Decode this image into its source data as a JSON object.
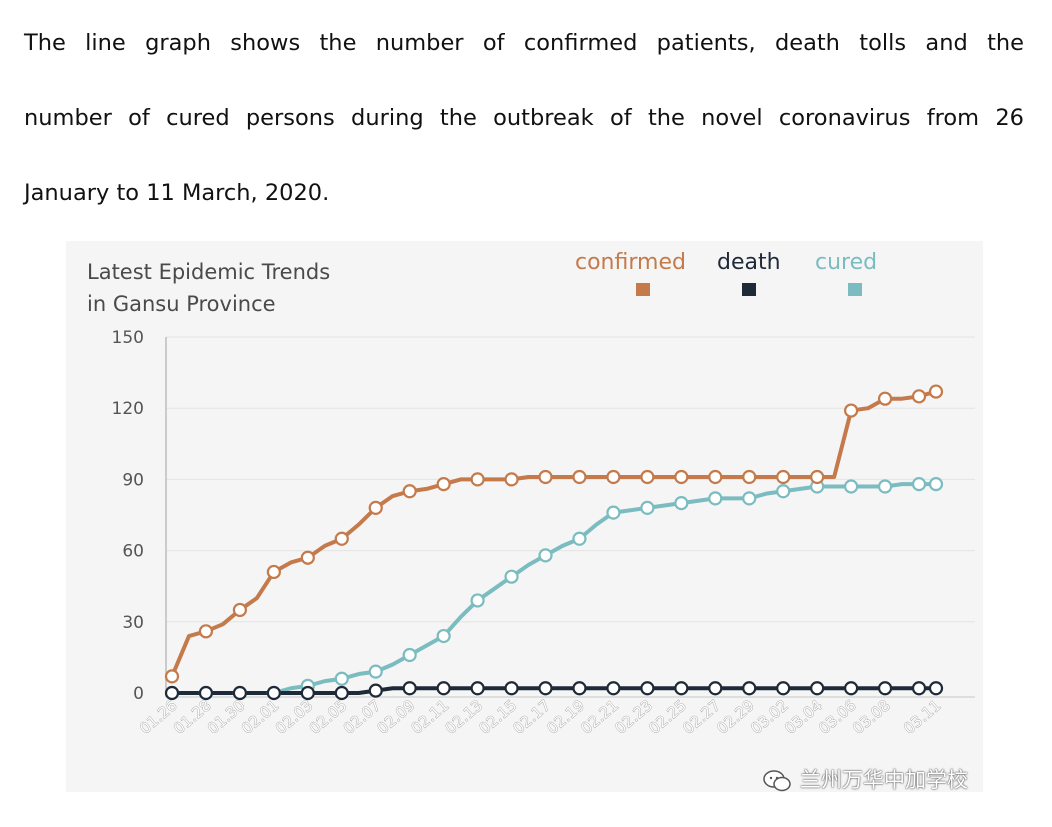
{
  "intro": {
    "line1": "The line graph shows the number of confirmed patients, death tolls and the",
    "line2": "number of cured persons during the outbreak of the novel coronavirus from 26",
    "line3": "January to 11 March, 2020."
  },
  "watermark": "兰州万华中加学校",
  "chart_data": {
    "type": "line",
    "title_line1": "Latest Epidemic Trends",
    "title_line2": "in Gansu Province",
    "xlabel": "",
    "ylabel": "",
    "ylim": [
      0,
      150
    ],
    "yticks": [
      "0",
      "30",
      "60",
      "90",
      "120",
      "150"
    ],
    "grid": true,
    "legend_position": "top-right",
    "x": [
      "01.26",
      "01.27",
      "01.28",
      "01.29",
      "01.30",
      "01.31",
      "02.01",
      "02.02",
      "02.03",
      "02.04",
      "02.05",
      "02.06",
      "02.07",
      "02.08",
      "02.09",
      "02.10",
      "02.11",
      "02.12",
      "02.13",
      "02.14",
      "02.15",
      "02.16",
      "02.17",
      "02.18",
      "02.19",
      "02.20",
      "02.21",
      "02.22",
      "02.23",
      "02.24",
      "02.25",
      "02.26",
      "02.27",
      "02.28",
      "02.29",
      "03.01",
      "03.02",
      "03.03",
      "03.04",
      "03.05",
      "03.06",
      "03.07",
      "03.08",
      "03.09",
      "03.10",
      "03.11"
    ],
    "xticks": [
      "01.26",
      "01.28",
      "01.30",
      "02.01",
      "02.03",
      "02.05",
      "02.07",
      "02.09",
      "02.11",
      "02.13",
      "02.15",
      "02.17",
      "02.19",
      "02.21",
      "02.23",
      "02.25",
      "02.27",
      "02.29",
      "03.02",
      "03.04",
      "03.06",
      "03.08",
      "03.11"
    ],
    "tick_index": [
      0,
      2,
      4,
      6,
      8,
      10,
      12,
      14,
      16,
      18,
      20,
      22,
      24,
      26,
      28,
      30,
      32,
      34,
      36,
      38,
      40,
      42,
      45
    ],
    "series": [
      {
        "name": "confirmed",
        "color": "#c47a4a",
        "values": [
          7,
          24,
          26,
          29,
          35,
          40,
          51,
          55,
          57,
          62,
          65,
          71,
          78,
          83,
          85,
          86,
          88,
          90,
          90,
          90,
          90,
          91,
          91,
          91,
          91,
          91,
          91,
          91,
          91,
          91,
          91,
          91,
          91,
          91,
          91,
          91,
          91,
          91,
          91,
          91,
          119,
          120,
          124,
          124,
          125,
          127
        ]
      },
      {
        "name": "death",
        "color": "#1f2a38",
        "values": [
          0,
          0,
          0,
          0,
          0,
          0,
          0,
          0,
          0,
          0,
          0,
          0,
          1,
          2,
          2,
          2,
          2,
          2,
          2,
          2,
          2,
          2,
          2,
          2,
          2,
          2,
          2,
          2,
          2,
          2,
          2,
          2,
          2,
          2,
          2,
          2,
          2,
          2,
          2,
          2,
          2,
          2,
          2,
          2,
          2,
          2
        ]
      },
      {
        "name": "cured",
        "color": "#7bbcc0",
        "values": [
          0,
          0,
          0,
          0,
          0,
          0,
          0,
          2,
          3,
          5,
          6,
          8,
          9,
          12,
          16,
          20,
          24,
          32,
          39,
          44,
          49,
          54,
          58,
          62,
          65,
          71,
          76,
          77,
          78,
          79,
          80,
          81,
          82,
          82,
          82,
          84,
          85,
          86,
          87,
          87,
          87,
          87,
          87,
          88,
          88,
          88
        ]
      }
    ]
  }
}
